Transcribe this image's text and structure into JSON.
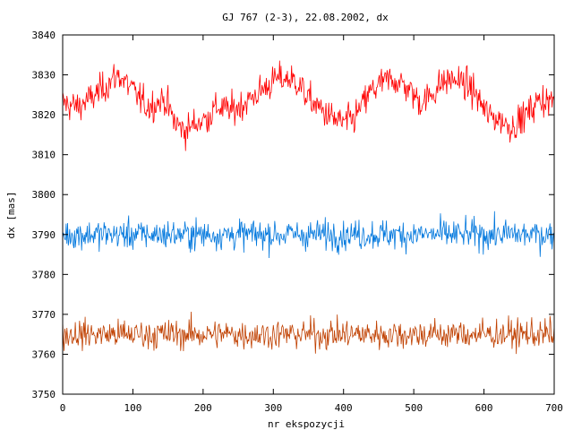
{
  "chart_data": {
    "type": "line",
    "title": "GJ 767 (2-3), 22.08.2002, dx",
    "xlabel": "nr ekspozycji",
    "ylabel": "dx [mas]",
    "xlim": [
      0,
      700
    ],
    "ylim": [
      3750,
      3840
    ],
    "xticks": [
      0,
      100,
      200,
      300,
      400,
      500,
      600,
      700
    ],
    "yticks": [
      3750,
      3760,
      3770,
      3780,
      3790,
      3800,
      3810,
      3820,
      3830,
      3840
    ],
    "grid": false,
    "legend": "none",
    "series": [
      {
        "color": "#ff0000",
        "x": [
          0,
          20,
          40,
          60,
          72,
          80,
          100,
          120,
          135,
          145,
          160,
          175,
          190,
          205,
          220,
          240,
          260,
          275,
          290,
          305,
          322,
          335,
          350,
          370,
          385,
          400,
          415,
          425,
          440,
          455,
          470,
          490,
          510,
          525,
          540,
          555,
          570,
          585,
          605,
          620,
          640,
          660,
          680,
          700
        ],
        "values": [
          3823,
          3822,
          3824,
          3827,
          3829,
          3830,
          3826,
          3822,
          3823,
          3824,
          3818,
          3816,
          3818,
          3819,
          3822,
          3821,
          3823,
          3825,
          3827,
          3829,
          3829,
          3828,
          3824,
          3821,
          3819,
          3818,
          3819,
          3822,
          3826,
          3828,
          3829,
          3827,
          3823,
          3825,
          3828,
          3829,
          3828,
          3826,
          3820,
          3819,
          3817,
          3820,
          3824,
          3823
        ],
        "noise_amplitude": 3.2
      },
      {
        "color": "#0077dd",
        "x": [
          0,
          100,
          200,
          300,
          400,
          500,
          600,
          700
        ],
        "values": [
          3790,
          3790,
          3790,
          3790,
          3790,
          3790,
          3790,
          3790
        ],
        "noise_amplitude": 3.0
      },
      {
        "color": "#c04000",
        "x": [
          0,
          100,
          200,
          300,
          400,
          500,
          600,
          700
        ],
        "values": [
          3765,
          3765,
          3765,
          3765,
          3765,
          3765,
          3765,
          3765
        ],
        "noise_amplitude": 3.0
      }
    ],
    "n_points": 700
  }
}
